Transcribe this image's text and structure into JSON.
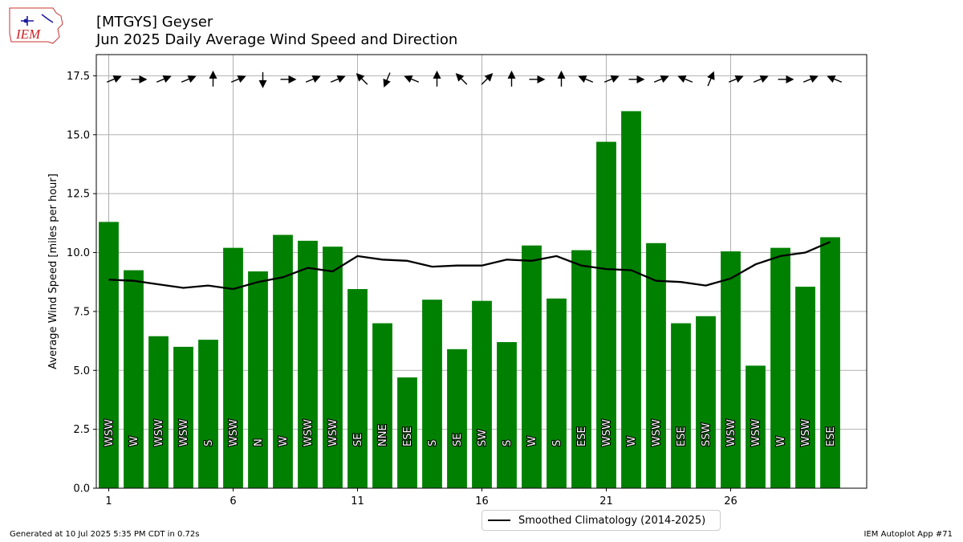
{
  "header": {
    "title": "[MTGYS] Geyser",
    "subtitle": "Jun 2025 Daily Average Wind Speed and Direction"
  },
  "logo": {
    "text": "IEM"
  },
  "footer": {
    "generated": "Generated at 10 Jul 2025 5:35 PM CDT in 0.72s",
    "app": "IEM Autoplot App #71"
  },
  "colors": {
    "bar": "#008000",
    "climo_line": "#000000",
    "grid": "#b0b0b0",
    "arrow": "#000000"
  },
  "chart_data": {
    "type": "bar",
    "ylabel": "Average Wind Speed [miles per hour]",
    "ylim": [
      0,
      18.4
    ],
    "yticks": [
      "0.0",
      "2.5",
      "5.0",
      "7.5",
      "10.0",
      "12.5",
      "15.0",
      "17.5"
    ],
    "xticks": [
      "1",
      "6",
      "11",
      "16",
      "21",
      "26"
    ],
    "grid": true,
    "days": [
      1,
      2,
      3,
      4,
      5,
      6,
      7,
      8,
      9,
      10,
      11,
      12,
      13,
      14,
      15,
      16,
      17,
      18,
      19,
      20,
      21,
      22,
      23,
      24,
      25,
      26,
      27,
      28,
      29,
      30
    ],
    "speeds": [
      11.3,
      9.25,
      6.45,
      6.0,
      6.3,
      10.2,
      9.2,
      10.75,
      10.5,
      10.25,
      8.45,
      7.0,
      4.7,
      8.0,
      5.9,
      7.95,
      6.2,
      10.3,
      8.05,
      10.1,
      14.7,
      16.0,
      10.4,
      7.0,
      7.3,
      10.05,
      5.2,
      10.2,
      8.55,
      10.65
    ],
    "directions": [
      "WSW",
      "W",
      "WSW",
      "WSW",
      "S",
      "WSW",
      "N",
      "W",
      "WSW",
      "WSW",
      "SE",
      "NNE",
      "ESE",
      "S",
      "SE",
      "SW",
      "S",
      "W",
      "S",
      "ESE",
      "WSW",
      "W",
      "WSW",
      "ESE",
      "SSW",
      "WSW",
      "WSW",
      "W",
      "WSW",
      "ESE"
    ],
    "climatology": {
      "name": "Smoothed Climatology (2014-2025)",
      "values": [
        8.85,
        8.8,
        8.65,
        8.5,
        8.6,
        8.45,
        8.75,
        8.95,
        9.35,
        9.2,
        9.85,
        9.7,
        9.65,
        9.4,
        9.45,
        9.45,
        9.7,
        9.65,
        9.85,
        9.45,
        9.3,
        9.25,
        8.8,
        8.75,
        8.6,
        8.9,
        9.5,
        9.85,
        10.0,
        10.45
      ]
    },
    "legend_position": "bottom-center"
  }
}
